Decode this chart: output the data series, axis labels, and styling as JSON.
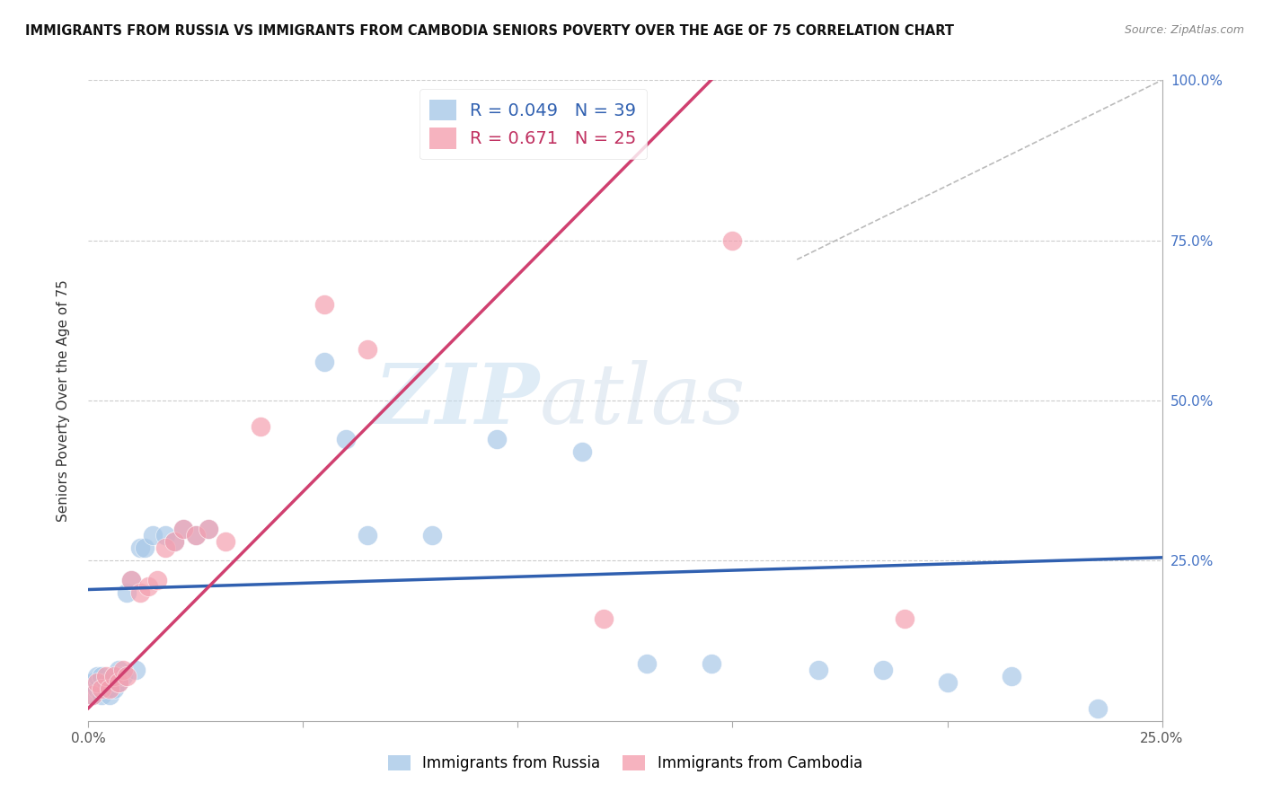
{
  "title": "IMMIGRANTS FROM RUSSIA VS IMMIGRANTS FROM CAMBODIA SENIORS POVERTY OVER THE AGE OF 75 CORRELATION CHART",
  "source": "Source: ZipAtlas.com",
  "ylabel": "Seniors Poverty Over the Age of 75",
  "russia_R": 0.049,
  "russia_N": 39,
  "cambodia_R": 0.671,
  "cambodia_N": 25,
  "russia_color": "#a8c8e8",
  "cambodia_color": "#f4a0b0",
  "russia_line_color": "#3060b0",
  "cambodia_line_color": "#d04070",
  "watermark_zip": "ZIP",
  "watermark_atlas": "atlas",
  "xlim": [
    0.0,
    0.25
  ],
  "ylim": [
    0.0,
    1.0
  ],
  "xtick_vals": [
    0.0,
    0.05,
    0.1,
    0.15,
    0.2,
    0.25
  ],
  "xticklabels": [
    "0.0%",
    "",
    "",
    "",
    "",
    "25.0%"
  ],
  "ytick_vals": [
    0.0,
    0.25,
    0.5,
    0.75,
    1.0
  ],
  "yticklabels_right": [
    "",
    "25.0%",
    "50.0%",
    "75.0%",
    "100.0%"
  ],
  "russia_x": [
    0.001,
    0.001,
    0.002,
    0.002,
    0.003,
    0.003,
    0.004,
    0.004,
    0.005,
    0.005,
    0.006,
    0.006,
    0.007,
    0.007,
    0.008,
    0.009,
    0.01,
    0.011,
    0.012,
    0.013,
    0.015,
    0.018,
    0.02,
    0.022,
    0.025,
    0.028,
    0.055,
    0.06,
    0.065,
    0.08,
    0.095,
    0.115,
    0.13,
    0.145,
    0.17,
    0.185,
    0.2,
    0.215,
    0.235
  ],
  "russia_y": [
    0.04,
    0.06,
    0.05,
    0.07,
    0.04,
    0.07,
    0.05,
    0.06,
    0.04,
    0.06,
    0.05,
    0.07,
    0.06,
    0.08,
    0.07,
    0.2,
    0.22,
    0.08,
    0.27,
    0.27,
    0.29,
    0.29,
    0.28,
    0.3,
    0.29,
    0.3,
    0.56,
    0.44,
    0.29,
    0.29,
    0.44,
    0.42,
    0.09,
    0.09,
    0.08,
    0.08,
    0.06,
    0.07,
    0.02
  ],
  "cambodia_x": [
    0.001,
    0.002,
    0.003,
    0.004,
    0.005,
    0.006,
    0.007,
    0.008,
    0.009,
    0.01,
    0.012,
    0.014,
    0.016,
    0.018,
    0.02,
    0.022,
    0.025,
    0.028,
    0.032,
    0.04,
    0.055,
    0.065,
    0.12,
    0.15,
    0.19
  ],
  "cambodia_y": [
    0.04,
    0.06,
    0.05,
    0.07,
    0.05,
    0.07,
    0.06,
    0.08,
    0.07,
    0.22,
    0.2,
    0.21,
    0.22,
    0.27,
    0.28,
    0.3,
    0.29,
    0.3,
    0.28,
    0.46,
    0.65,
    0.58,
    0.16,
    0.75,
    0.16
  ],
  "russia_line_x": [
    0.0,
    0.25
  ],
  "russia_line_y": [
    0.205,
    0.255
  ],
  "cambodia_line_x": [
    0.0,
    0.145
  ],
  "cambodia_line_y": [
    0.02,
    1.0
  ],
  "ref_line_x": [
    0.165,
    0.25
  ],
  "ref_line_y": [
    0.72,
    1.0
  ]
}
